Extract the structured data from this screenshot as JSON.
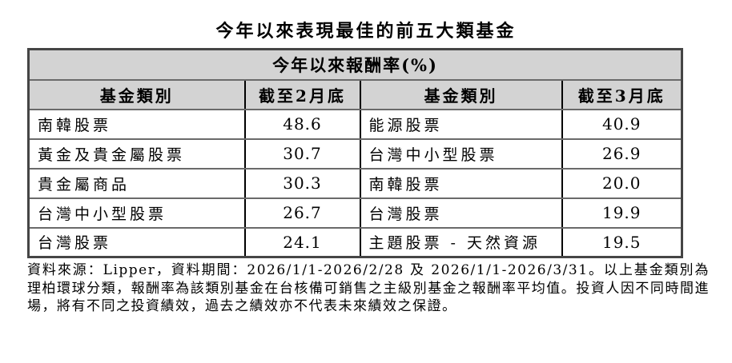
{
  "page": {
    "title": "今年以來表現最佳的前五大類基金"
  },
  "table": {
    "merged_header": "今年以來報酬率(%)",
    "columns": [
      "基金類別",
      "截至2月底",
      "基金類別",
      "截至3月底"
    ],
    "rows": [
      {
        "cat_feb": "南韓股票",
        "val_feb": "48.6",
        "cat_mar": "能源股票",
        "val_mar": "40.9"
      },
      {
        "cat_feb": "黃金及貴金屬股票",
        "val_feb": "30.7",
        "cat_mar": "台灣中小型股票",
        "val_mar": "26.9"
      },
      {
        "cat_feb": "貴金屬商品",
        "val_feb": "30.3",
        "cat_mar": "南韓股票",
        "val_mar": "20.0"
      },
      {
        "cat_feb": "台灣中小型股票",
        "val_feb": "26.7",
        "cat_mar": "台灣股票",
        "val_mar": "19.9"
      },
      {
        "cat_feb": "台灣股票",
        "val_feb": "24.1",
        "cat_mar": "主題股票 - 天然資源",
        "val_mar": "19.5"
      }
    ]
  },
  "footnote": "資料來源：Lipper，資料期間：2026/1/1-2026/2/28 及 2026/1/1-2026/3/31。以上基金類別為理柏環球分類，報酬率為該類別基金在台核備可銷售之主級別基金之報酬率平均值。投資人因不同時間進場，將有不同之投資績效，過去之績效亦不代表未來績效之保證。",
  "colors": {
    "header_bg": "#d3d3d3",
    "grid_horizontal": "#6a6a6a",
    "grid_vertical": "#000000",
    "outer_border": "#454545",
    "text": "#000000",
    "background": "#ffffff"
  }
}
